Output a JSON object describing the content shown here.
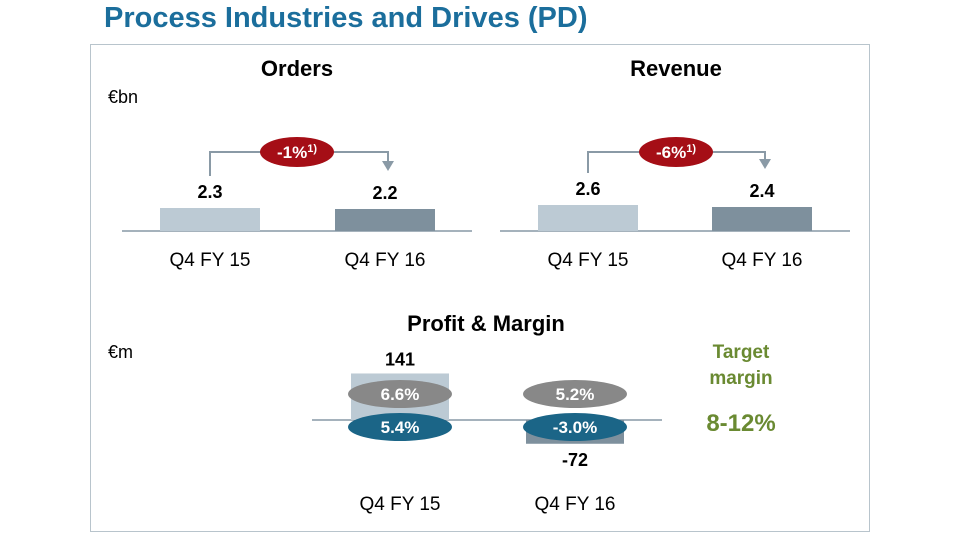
{
  "title": "Process Industries and Drives (PD)",
  "colors": {
    "title": "#1b6e9c",
    "bar_prior": "#bccad4",
    "bar_current": "#7e909d",
    "pill_red": "#a50e16",
    "pill_gray": "#888888",
    "pill_blue": "#1b6587",
    "target_green": "#6a8a32",
    "arrow": "#8a9aa6"
  },
  "chart_data": [
    {
      "type": "bar",
      "title": "Orders",
      "unit": "€bn",
      "categories": [
        "Q4 FY 15",
        "Q4 FY 16"
      ],
      "values": [
        2.3,
        2.2
      ],
      "value_labels": [
        "2.3",
        "2.2"
      ],
      "change_label": "-1%",
      "change_footnote": "1)"
    },
    {
      "type": "bar",
      "title": "Revenue",
      "categories": [
        "Q4 FY 15",
        "Q4 FY 16"
      ],
      "values": [
        2.6,
        2.4
      ],
      "value_labels": [
        "2.6",
        "2.4"
      ],
      "change_label": "-6%",
      "change_footnote": "1)"
    },
    {
      "type": "bar",
      "title": "Profit & Margin",
      "unit": "€m",
      "categories": [
        "Q4 FY 15",
        "Q4 FY 16"
      ],
      "values": [
        141,
        -72
      ],
      "value_labels": [
        "141",
        "-72"
      ],
      "margin_gray": [
        "6.6%",
        "5.2%"
      ],
      "margin_blue": [
        "5.4%",
        "-3.0%"
      ]
    }
  ],
  "target": {
    "label_line1": "Target",
    "label_line2": "margin",
    "range": "8-12%"
  }
}
